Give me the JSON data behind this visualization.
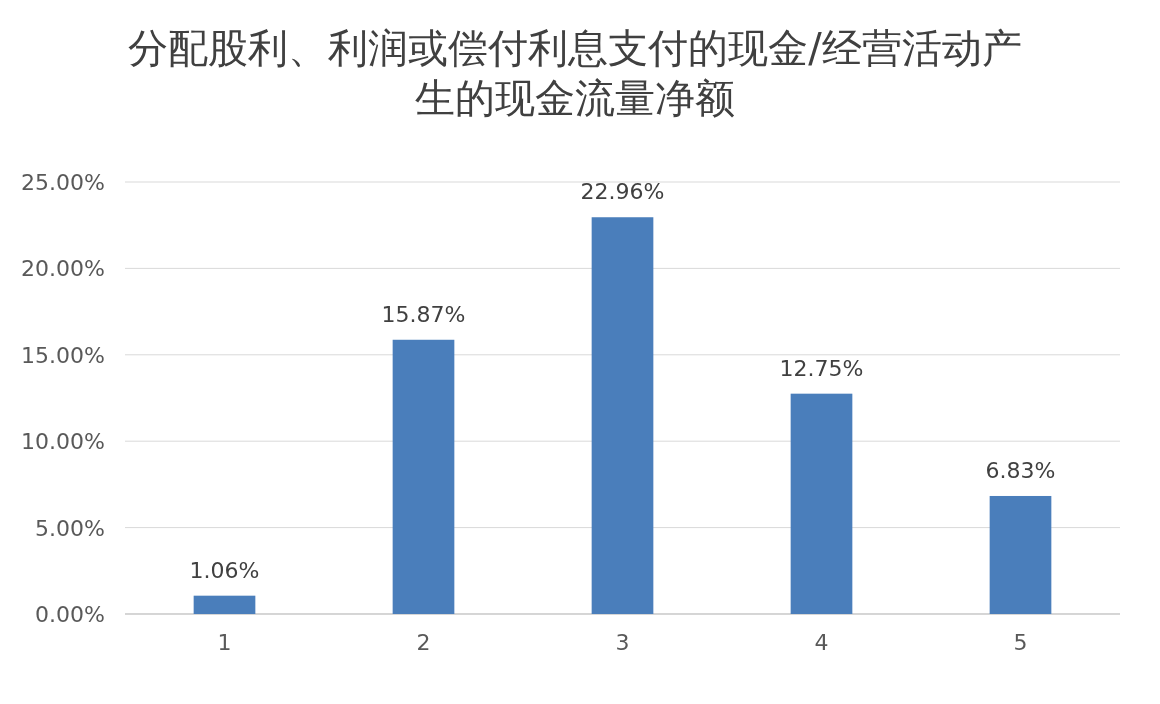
{
  "chart_data": {
    "type": "bar",
    "title": "分配股利、利润或偿付利息支付的现金/经营活动产生的现金流量净额",
    "categories": [
      "1",
      "2",
      "3",
      "4",
      "5"
    ],
    "values": [
      1.06,
      15.87,
      22.96,
      12.75,
      6.83
    ],
    "value_labels": [
      "1.06%",
      "15.87%",
      "22.96%",
      "12.75%",
      "6.83%"
    ],
    "color": "#4a7ebb",
    "ylim": [
      0,
      25
    ],
    "yticks": [
      {
        "value": 0,
        "label": "0.00%"
      },
      {
        "value": 5,
        "label": "5.00%"
      },
      {
        "value": 10,
        "label": "10.00%"
      },
      {
        "value": 15,
        "label": "15.00%"
      },
      {
        "value": 20,
        "label": "20.00%"
      },
      {
        "value": 25,
        "label": "25.00%"
      }
    ],
    "grid": "y"
  }
}
